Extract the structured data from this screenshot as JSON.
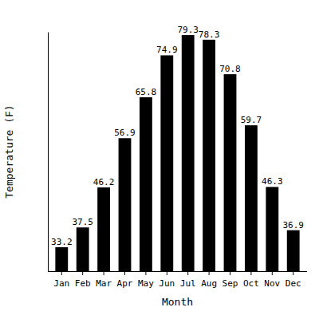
{
  "chart_data": {
    "type": "bar",
    "x_label": "Month",
    "y_label": "Temperature (F)",
    "categories": [
      "Jan",
      "Feb",
      "Mar",
      "Apr",
      "May",
      "Jun",
      "Jul",
      "Aug",
      "Sep",
      "Oct",
      "Nov",
      "Dec"
    ],
    "values": [
      33.2,
      37.5,
      46.2,
      56.9,
      65.8,
      74.9,
      79.3,
      78.3,
      70.8,
      59.7,
      46.3,
      36.9
    ],
    "color": "#000000",
    "ylim": [
      28,
      80
    ],
    "data_labels": true,
    "tick_labels": "x",
    "grid": false
  }
}
